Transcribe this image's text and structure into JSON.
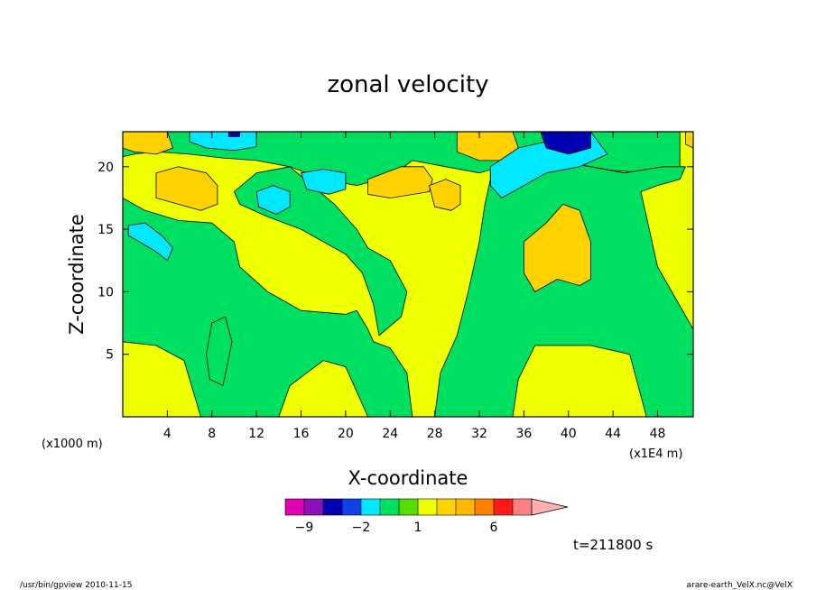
{
  "chart_data": {
    "type": "heatmap",
    "title": "zonal velocity",
    "xlabel": "X-coordinate",
    "ylabel": "Z-coordinate",
    "x_unit_left": "(x1000 m)",
    "x_unit_right": "(x1E4 m)",
    "xlim": [
      0,
      51.2
    ],
    "ylim": [
      0,
      22.8
    ],
    "x_ticks": [
      4,
      8,
      12,
      16,
      20,
      24,
      28,
      32,
      36,
      40,
      44,
      48
    ],
    "y_ticks": [
      5,
      10,
      15,
      20
    ],
    "grid": false,
    "colorbar": {
      "levels": [
        -12,
        -9,
        -6,
        -3,
        -2,
        -1,
        0,
        1,
        2,
        3,
        4,
        6,
        8,
        10
      ],
      "colors": [
        "#e000b0",
        "#8a10b8",
        "#0000b0",
        "#1040e8",
        "#00e8ff",
        "#00e060",
        "#55dd00",
        "#eeff00",
        "#ffd200",
        "#ffb800",
        "#ff8000",
        "#ff1a1a",
        "#ff8080",
        "#ffb0b0"
      ],
      "labeled_ticks": [
        {
          "value": -9,
          "label": "−9"
        },
        {
          "value": -2,
          "label": "−2"
        },
        {
          "value": 1,
          "label": "1"
        },
        {
          "value": 6,
          "label": "6"
        }
      ]
    },
    "time_label": "t=211800 s",
    "regions": [
      {
        "name": "yellow-base",
        "level": "0 to 1",
        "color": "#eeff00"
      },
      {
        "name": "green-left-band",
        "level": "-1 to 0",
        "color": "#00e060",
        "points": [
          [
            0,
            17.5
          ],
          [
            2,
            16.5
          ],
          [
            5,
            15.7
          ],
          [
            8,
            15.5
          ],
          [
            10,
            14
          ],
          [
            10.5,
            12
          ],
          [
            13,
            10
          ],
          [
            16,
            8.5
          ],
          [
            20,
            8.2
          ],
          [
            21,
            8.5
          ],
          [
            22,
            7
          ],
          [
            22.5,
            6
          ],
          [
            24,
            5.5
          ],
          [
            25.5,
            3.5
          ],
          [
            26,
            0
          ],
          [
            22,
            0
          ],
          [
            20,
            4
          ],
          [
            18,
            4.5
          ],
          [
            15,
            2.5
          ],
          [
            14,
            0
          ],
          [
            7,
            0
          ],
          [
            5.5,
            4.5
          ],
          [
            3,
            5.7
          ],
          [
            0,
            6
          ]
        ]
      },
      {
        "name": "green-upper-arch",
        "level": "-1 to 0",
        "color": "#00e060",
        "points": [
          [
            0,
            22.8
          ],
          [
            50,
            22.8
          ],
          [
            50,
            20
          ],
          [
            47,
            19.5
          ],
          [
            44,
            19.7
          ],
          [
            42,
            20
          ],
          [
            39,
            20.5
          ],
          [
            36,
            20.5
          ],
          [
            34,
            20
          ],
          [
            32,
            19.5
          ],
          [
            29,
            20
          ],
          [
            26,
            20.5
          ],
          [
            24,
            19.2
          ],
          [
            21,
            18.5
          ],
          [
            18,
            19
          ],
          [
            15,
            20
          ],
          [
            12,
            20.5
          ],
          [
            9,
            20.7
          ],
          [
            6,
            21
          ],
          [
            3,
            21.2
          ],
          [
            1,
            21
          ],
          [
            0,
            20.8
          ]
        ]
      },
      {
        "name": "green-center-x",
        "level": "-1 to 0",
        "color": "#00e060",
        "points": [
          [
            10,
            18
          ],
          [
            12,
            19.5
          ],
          [
            15,
            20
          ],
          [
            17,
            18.5
          ],
          [
            19,
            17
          ],
          [
            21,
            15
          ],
          [
            22,
            13.5
          ],
          [
            24,
            12.5
          ],
          [
            25.5,
            10
          ],
          [
            25,
            8
          ],
          [
            23,
            6.5
          ],
          [
            22.5,
            9
          ],
          [
            21.5,
            11.5
          ],
          [
            20,
            13
          ],
          [
            18,
            14
          ],
          [
            16,
            15
          ],
          [
            13,
            16
          ],
          [
            10.5,
            17
          ]
        ]
      },
      {
        "name": "green-right-column",
        "level": "-1 to 0",
        "color": "#00e060",
        "points": [
          [
            33,
            20
          ],
          [
            36,
            21
          ],
          [
            38,
            20.5
          ],
          [
            42,
            20
          ],
          [
            45,
            19.5
          ],
          [
            48.5,
            20
          ],
          [
            50.5,
            20
          ],
          [
            50,
            19
          ],
          [
            48,
            18.5
          ],
          [
            46.5,
            18
          ],
          [
            47,
            16
          ],
          [
            48,
            12
          ],
          [
            51.2,
            7
          ],
          [
            51.2,
            0
          ],
          [
            47,
            0
          ],
          [
            45.5,
            5
          ],
          [
            42,
            5.7
          ],
          [
            37,
            5.7
          ],
          [
            35.5,
            3
          ],
          [
            35,
            0
          ],
          [
            28,
            0
          ],
          [
            28.5,
            3.5
          ],
          [
            30,
            6.5
          ],
          [
            31,
            10
          ],
          [
            32,
            14
          ],
          [
            32.5,
            17
          ],
          [
            33,
            19
          ]
        ]
      },
      {
        "name": "green-bottom-left-patch",
        "level": "-1 to 0",
        "color": "#00e060",
        "points": [
          [
            7.5,
            5
          ],
          [
            8,
            7.5
          ],
          [
            9.2,
            8
          ],
          [
            9.8,
            6
          ],
          [
            9,
            2.5
          ],
          [
            7.8,
            3
          ]
        ]
      },
      {
        "name": "orange-top-left",
        "level": "2 to 3",
        "color": "#ffd200",
        "points": [
          [
            0,
            22.8
          ],
          [
            4,
            22.8
          ],
          [
            4.5,
            21.5
          ],
          [
            3,
            21
          ],
          [
            1,
            21.2
          ],
          [
            0,
            21.5
          ]
        ]
      },
      {
        "name": "orange-upper-left-blob",
        "level": "2 to 3",
        "color": "#ffd200",
        "points": [
          [
            3,
            19.5
          ],
          [
            5,
            20
          ],
          [
            7.5,
            19.5
          ],
          [
            8.5,
            18.5
          ],
          [
            8.5,
            17
          ],
          [
            7,
            16.5
          ],
          [
            5,
            17
          ],
          [
            3,
            17.5
          ]
        ]
      },
      {
        "name": "orange-upper-mid-blob",
        "level": "2 to 3",
        "color": "#ffd200",
        "points": [
          [
            22,
            19
          ],
          [
            25,
            20
          ],
          [
            27,
            20
          ],
          [
            27.8,
            19
          ],
          [
            27.5,
            18
          ],
          [
            24,
            17.5
          ],
          [
            22,
            17.8
          ]
        ]
      },
      {
        "name": "orange-small-blob",
        "level": "2 to 3",
        "color": "#ffd200",
        "points": [
          [
            27.5,
            18.5
          ],
          [
            29,
            19
          ],
          [
            30.3,
            18.5
          ],
          [
            30.3,
            17
          ],
          [
            29.5,
            16.5
          ],
          [
            28,
            16.8
          ]
        ]
      },
      {
        "name": "orange-top-center",
        "level": "2 to 4",
        "color": "#ffd200",
        "points": [
          [
            30,
            22.8
          ],
          [
            35,
            22.8
          ],
          [
            35.5,
            21.5
          ],
          [
            34,
            20.5
          ],
          [
            32,
            20.5
          ],
          [
            30,
            21.2
          ]
        ]
      },
      {
        "name": "orange-right-blob",
        "level": "2 to 3",
        "color": "#ffd200",
        "points": [
          [
            36,
            14
          ],
          [
            38,
            15.5
          ],
          [
            39.5,
            17
          ],
          [
            41,
            16.5
          ],
          [
            42,
            14
          ],
          [
            42,
            11
          ],
          [
            41,
            10.5
          ],
          [
            39,
            11
          ],
          [
            37,
            10
          ],
          [
            36,
            11.5
          ]
        ]
      },
      {
        "name": "orange-top-right",
        "level": "2 to 3",
        "color": "#ffd200",
        "points": [
          [
            50.5,
            22.8
          ],
          [
            51.2,
            22.8
          ],
          [
            51.2,
            21.5
          ],
          [
            50.5,
            21.8
          ]
        ]
      },
      {
        "name": "cyan-top-left",
        "level": "-3 to -2",
        "color": "#00e8ff",
        "points": [
          [
            6,
            22.8
          ],
          [
            12,
            22.8
          ],
          [
            12,
            21.6
          ],
          [
            10,
            21.3
          ],
          [
            7.5,
            21.5
          ],
          [
            6,
            22
          ]
        ]
      },
      {
        "name": "cyan-left-blob",
        "level": "-3 to -2",
        "color": "#00e8ff",
        "points": [
          [
            0.5,
            15.3
          ],
          [
            2,
            15.5
          ],
          [
            3.5,
            14.5
          ],
          [
            4.5,
            13.5
          ],
          [
            4,
            12.5
          ],
          [
            3,
            13.2
          ],
          [
            1.5,
            14
          ],
          [
            0.5,
            14.5
          ]
        ]
      },
      {
        "name": "cyan-mid-left-blob",
        "level": "-3 to -2",
        "color": "#00e8ff",
        "points": [
          [
            12,
            18
          ],
          [
            13.5,
            18.5
          ],
          [
            15,
            18
          ],
          [
            15,
            16.8
          ],
          [
            13.8,
            16.2
          ],
          [
            12.2,
            16.8
          ]
        ]
      },
      {
        "name": "cyan-mid-blob",
        "level": "-3 to -2",
        "color": "#00e8ff",
        "points": [
          [
            16,
            19.5
          ],
          [
            18,
            19.8
          ],
          [
            20,
            19.5
          ],
          [
            20,
            18.2
          ],
          [
            18.5,
            17.8
          ],
          [
            16.5,
            18.2
          ]
        ]
      },
      {
        "name": "cyan-top-right",
        "level": "-3 to -2",
        "color": "#00e8ff",
        "points": [
          [
            33,
            20
          ],
          [
            35.5,
            21.5
          ],
          [
            38,
            22
          ],
          [
            41,
            22.5
          ],
          [
            42,
            22.8
          ],
          [
            43.5,
            21
          ],
          [
            41,
            20
          ],
          [
            38,
            19.5
          ],
          [
            36,
            18.5
          ],
          [
            34,
            17.5
          ],
          [
            33,
            18.5
          ]
        ]
      },
      {
        "name": "blue-top-right",
        "level": "-6 to -3",
        "color": "#0000b0",
        "points": [
          [
            37.5,
            22.8
          ],
          [
            42,
            22.8
          ],
          [
            42,
            21.5
          ],
          [
            40,
            21
          ],
          [
            38,
            21.5
          ]
        ]
      },
      {
        "name": "blue-top-left-spot",
        "level": "-6 to -3",
        "color": "#0000b0",
        "points": [
          [
            9.5,
            22.8
          ],
          [
            10.5,
            22.8
          ],
          [
            10.5,
            22.4
          ],
          [
            9.5,
            22.4
          ]
        ]
      }
    ]
  },
  "footer": {
    "left": "/usr/bin/gpview   2010-11-15",
    "right": "arare-earth_VelX.nc@VelX"
  }
}
